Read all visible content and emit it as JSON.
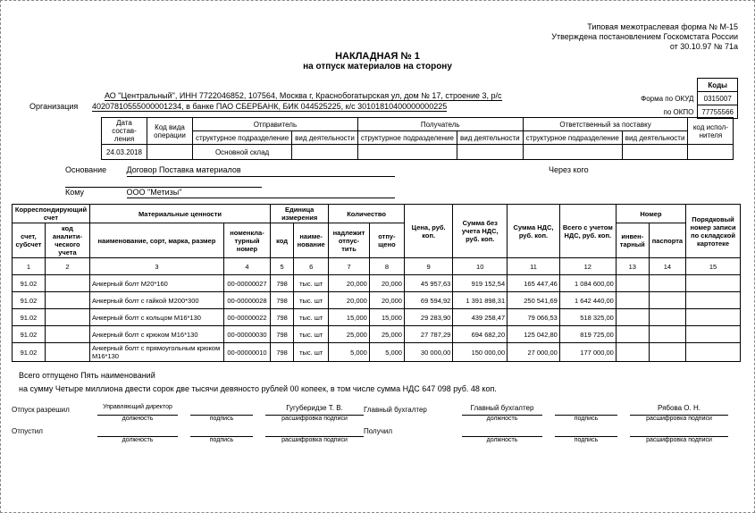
{
  "header": {
    "formLine1": "Типовая межотраслевая форма № М-15",
    "formLine2": "Утверждена постановлением Госкомстата России",
    "formLine3": "от 30.10.97 № 71а"
  },
  "title": {
    "main": "НАКЛАДНАЯ № 1",
    "sub": "на отпуск материалов на сторону"
  },
  "codes": {
    "head": "Коды",
    "okudLabel": "Форма по ОКУД",
    "okud": "0315007",
    "okpoLabel": "по ОКПО",
    "okpo": "77755566"
  },
  "org": {
    "label": "Организация",
    "line1": "АО \"Центральный\", ИНН 7722046852, 107564, Москва г, Краснобогатырская ул, дом № 17, строение 3, р/с",
    "line2": "40207810555000001234, в банке ПАО СБЕРБАНК, БИК 044525225, к/с 30101810400000000225"
  },
  "hdr": {
    "c_date": "Дата состав- ления",
    "c_op": "Код вида операции",
    "g_sender": "Отправитель",
    "g_recv": "Получатель",
    "g_resp": "Ответственный за поставку",
    "c_struct": "структурное подразделение",
    "c_act": "вид деятельности",
    "c_exec": "код испол- нителя",
    "row": {
      "date": "24.03.2018",
      "struct": "Основной склад"
    }
  },
  "basis": {
    "l1": "Основание",
    "v1": "Договор Поставка материалов",
    "l2": "Кому",
    "v2": "ООО \"Метизы\"",
    "thru": "Через кого"
  },
  "main": {
    "h": {
      "g_acc": "Корреспондирующий счет",
      "c_acc": "счет, субсчет",
      "c_anal": "код аналити- ческого учета",
      "g_mat": "Материальные ценности",
      "c_name": "наименование, сорт, марка, размер",
      "c_nomen": "номенкла- турный номер",
      "g_unit": "Единица измерения",
      "c_ucode": "код",
      "c_uname": "наиме- нование",
      "g_qty": "Количество",
      "c_qreq": "надлежит отпус- тить",
      "c_qrel": "отпу- щено",
      "c_price": "Цена, руб. коп.",
      "c_sum_novat": "Сумма без учета НДС, руб. коп.",
      "c_vat": "Сумма НДС, руб. коп.",
      "c_total": "Всего с учетом НДС, руб. коп.",
      "g_num": "Номер",
      "c_inv": "инвен- тарный",
      "c_pass": "паспорта",
      "c_ord": "Порядковый номер записи по складской картотеке"
    },
    "nums": [
      "1",
      "2",
      "3",
      "4",
      "5",
      "6",
      "7",
      "8",
      "9",
      "10",
      "11",
      "12",
      "13",
      "14",
      "15"
    ],
    "rows": [
      {
        "acc": "91.02",
        "name": "Анкерный болт М20*160",
        "nomen": "00-00000027",
        "ucode": "798",
        "uname": "тыс. шт",
        "qreq": "20,000",
        "qrel": "20,000",
        "price": "45 957,63",
        "sum": "919 152,54",
        "vat": "165 447,46",
        "total": "1 084 600,00"
      },
      {
        "acc": "91.02",
        "name": "Анкерный болт с гайкой М200*300",
        "nomen": "00-00000028",
        "ucode": "798",
        "uname": "тыс. шт",
        "qreq": "20,000",
        "qrel": "20,000",
        "price": "69 594,92",
        "sum": "1 391 898,31",
        "vat": "250 541,69",
        "total": "1 642 440,00"
      },
      {
        "acc": "91.02",
        "name": "Анкерный болт с кольцом М16*130",
        "nomen": "00-00000022",
        "ucode": "798",
        "uname": "тыс. шт",
        "qreq": "15,000",
        "qrel": "15,000",
        "price": "29 283,90",
        "sum": "439 258,47",
        "vat": "79 066,53",
        "total": "518 325,00"
      },
      {
        "acc": "91.02",
        "name": "Анкерный болт с крюком М16*130",
        "nomen": "00-00000030",
        "ucode": "798",
        "uname": "тыс. шт",
        "qreq": "25,000",
        "qrel": "25,000",
        "price": "27 787,29",
        "sum": "694 682,20",
        "vat": "125 042,80",
        "total": "819 725,00"
      },
      {
        "acc": "91.02",
        "name": "Анкерный болт с прямоугольным крюком М16*130",
        "nomen": "00-00000010",
        "ucode": "798",
        "uname": "тыс. шт",
        "qreq": "5,000",
        "qrel": "5,000",
        "price": "30 000,00",
        "sum": "150 000,00",
        "vat": "27 000,00",
        "total": "177 000,00"
      }
    ]
  },
  "totals": {
    "t1": "Всего отпущено Пять  наименований",
    "t2": "на сумму Четыре миллиона двести сорок две тысячи девяносто рублей 00 копеек, в том числе сумма НДС 647 098 руб. 48 коп."
  },
  "sign": {
    "release": "Отпуск разрешил",
    "released": "Отпустил",
    "chief": "Главный бухгалтер",
    "received": "Получил",
    "pos": "должность",
    "sig": "подпись",
    "dec": "расшифровка подписи",
    "v_pos1": "Управляющий директор",
    "v_dec1": "Гугуберидзе Т. В.",
    "v_pos2": "Главный бухгалтер",
    "v_dec2": "Рябова О. Н."
  }
}
